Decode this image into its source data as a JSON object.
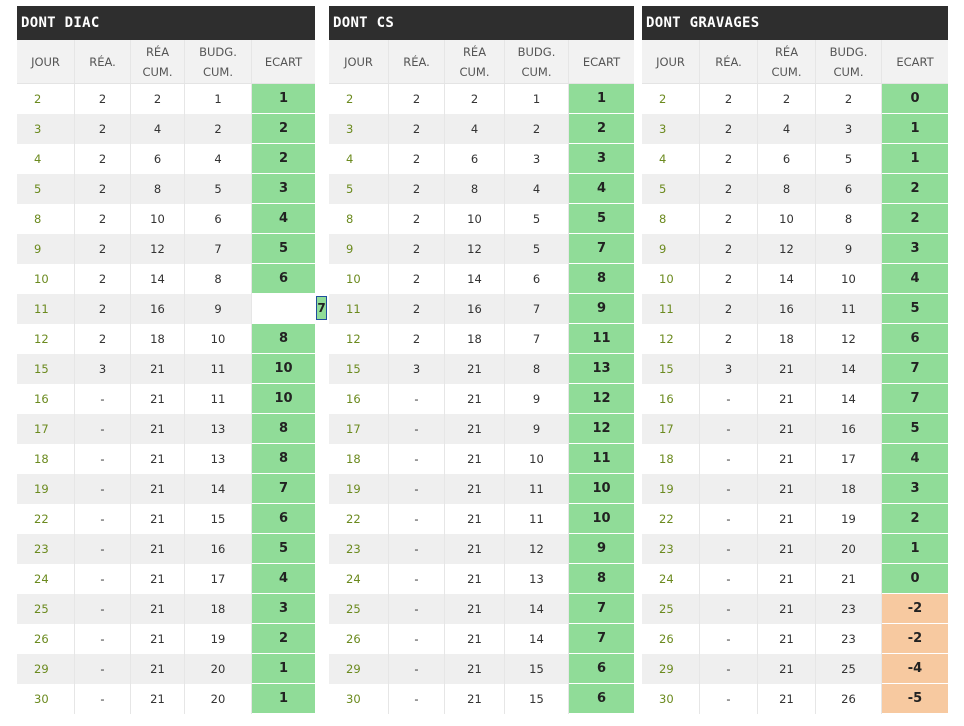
{
  "headers": {
    "jour": "JOUR",
    "rea": "RÉA.",
    "rea_cum_1": "RÉA",
    "rea_cum_2": "CUM.",
    "budg_cum_1": "BUDG.",
    "budg_cum_2": "CUM.",
    "ecart": "ECART"
  },
  "colors": {
    "title_bar": "#2e2e2e",
    "positive": "#90dc98",
    "negative": "#f7c9a0",
    "day_text": "#6b8a1e"
  },
  "panels": [
    {
      "title": "DONT DIAC",
      "rows": [
        {
          "jour": "2",
          "rea": "2",
          "rea_cum": "2",
          "budg_cum": "1",
          "ecart": "1"
        },
        {
          "jour": "3",
          "rea": "2",
          "rea_cum": "4",
          "budg_cum": "2",
          "ecart": "2"
        },
        {
          "jour": "4",
          "rea": "2",
          "rea_cum": "6",
          "budg_cum": "4",
          "ecart": "2"
        },
        {
          "jour": "5",
          "rea": "2",
          "rea_cum": "8",
          "budg_cum": "5",
          "ecart": "3"
        },
        {
          "jour": "8",
          "rea": "2",
          "rea_cum": "10",
          "budg_cum": "6",
          "ecart": "4"
        },
        {
          "jour": "9",
          "rea": "2",
          "rea_cum": "12",
          "budg_cum": "7",
          "ecart": "5"
        },
        {
          "jour": "10",
          "rea": "2",
          "rea_cum": "14",
          "budg_cum": "8",
          "ecart": "6"
        },
        {
          "jour": "11",
          "rea": "2",
          "rea_cum": "16",
          "budg_cum": "9",
          "ecart": "7",
          "selected": true
        },
        {
          "jour": "12",
          "rea": "2",
          "rea_cum": "18",
          "budg_cum": "10",
          "ecart": "8"
        },
        {
          "jour": "15",
          "rea": "3",
          "rea_cum": "21",
          "budg_cum": "11",
          "ecart": "10"
        },
        {
          "jour": "16",
          "rea": "-",
          "rea_cum": "21",
          "budg_cum": "11",
          "ecart": "10"
        },
        {
          "jour": "17",
          "rea": "-",
          "rea_cum": "21",
          "budg_cum": "13",
          "ecart": "8"
        },
        {
          "jour": "18",
          "rea": "-",
          "rea_cum": "21",
          "budg_cum": "13",
          "ecart": "8"
        },
        {
          "jour": "19",
          "rea": "-",
          "rea_cum": "21",
          "budg_cum": "14",
          "ecart": "7"
        },
        {
          "jour": "22",
          "rea": "-",
          "rea_cum": "21",
          "budg_cum": "15",
          "ecart": "6"
        },
        {
          "jour": "23",
          "rea": "-",
          "rea_cum": "21",
          "budg_cum": "16",
          "ecart": "5"
        },
        {
          "jour": "24",
          "rea": "-",
          "rea_cum": "21",
          "budg_cum": "17",
          "ecart": "4"
        },
        {
          "jour": "25",
          "rea": "-",
          "rea_cum": "21",
          "budg_cum": "18",
          "ecart": "3"
        },
        {
          "jour": "26",
          "rea": "-",
          "rea_cum": "21",
          "budg_cum": "19",
          "ecart": "2"
        },
        {
          "jour": "29",
          "rea": "-",
          "rea_cum": "21",
          "budg_cum": "20",
          "ecart": "1"
        },
        {
          "jour": "30",
          "rea": "-",
          "rea_cum": "21",
          "budg_cum": "20",
          "ecart": "1"
        }
      ]
    },
    {
      "title": "DONT CS",
      "rows": [
        {
          "jour": "2",
          "rea": "2",
          "rea_cum": "2",
          "budg_cum": "1",
          "ecart": "1"
        },
        {
          "jour": "3",
          "rea": "2",
          "rea_cum": "4",
          "budg_cum": "2",
          "ecart": "2"
        },
        {
          "jour": "4",
          "rea": "2",
          "rea_cum": "6",
          "budg_cum": "3",
          "ecart": "3"
        },
        {
          "jour": "5",
          "rea": "2",
          "rea_cum": "8",
          "budg_cum": "4",
          "ecart": "4"
        },
        {
          "jour": "8",
          "rea": "2",
          "rea_cum": "10",
          "budg_cum": "5",
          "ecart": "5"
        },
        {
          "jour": "9",
          "rea": "2",
          "rea_cum": "12",
          "budg_cum": "5",
          "ecart": "7"
        },
        {
          "jour": "10",
          "rea": "2",
          "rea_cum": "14",
          "budg_cum": "6",
          "ecart": "8"
        },
        {
          "jour": "11",
          "rea": "2",
          "rea_cum": "16",
          "budg_cum": "7",
          "ecart": "9"
        },
        {
          "jour": "12",
          "rea": "2",
          "rea_cum": "18",
          "budg_cum": "7",
          "ecart": "11"
        },
        {
          "jour": "15",
          "rea": "3",
          "rea_cum": "21",
          "budg_cum": "8",
          "ecart": "13"
        },
        {
          "jour": "16",
          "rea": "-",
          "rea_cum": "21",
          "budg_cum": "9",
          "ecart": "12"
        },
        {
          "jour": "17",
          "rea": "-",
          "rea_cum": "21",
          "budg_cum": "9",
          "ecart": "12"
        },
        {
          "jour": "18",
          "rea": "-",
          "rea_cum": "21",
          "budg_cum": "10",
          "ecart": "11"
        },
        {
          "jour": "19",
          "rea": "-",
          "rea_cum": "21",
          "budg_cum": "11",
          "ecart": "10"
        },
        {
          "jour": "22",
          "rea": "-",
          "rea_cum": "21",
          "budg_cum": "11",
          "ecart": "10"
        },
        {
          "jour": "23",
          "rea": "-",
          "rea_cum": "21",
          "budg_cum": "12",
          "ecart": "9"
        },
        {
          "jour": "24",
          "rea": "-",
          "rea_cum": "21",
          "budg_cum": "13",
          "ecart": "8"
        },
        {
          "jour": "25",
          "rea": "-",
          "rea_cum": "21",
          "budg_cum": "14",
          "ecart": "7"
        },
        {
          "jour": "26",
          "rea": "-",
          "rea_cum": "21",
          "budg_cum": "14",
          "ecart": "7"
        },
        {
          "jour": "29",
          "rea": "-",
          "rea_cum": "21",
          "budg_cum": "15",
          "ecart": "6"
        },
        {
          "jour": "30",
          "rea": "-",
          "rea_cum": "21",
          "budg_cum": "15",
          "ecart": "6"
        }
      ]
    },
    {
      "title": "DONT GRAVAGES",
      "rows": [
        {
          "jour": "2",
          "rea": "2",
          "rea_cum": "2",
          "budg_cum": "2",
          "ecart": "0"
        },
        {
          "jour": "3",
          "rea": "2",
          "rea_cum": "4",
          "budg_cum": "3",
          "ecart": "1"
        },
        {
          "jour": "4",
          "rea": "2",
          "rea_cum": "6",
          "budg_cum": "5",
          "ecart": "1"
        },
        {
          "jour": "5",
          "rea": "2",
          "rea_cum": "8",
          "budg_cum": "6",
          "ecart": "2"
        },
        {
          "jour": "8",
          "rea": "2",
          "rea_cum": "10",
          "budg_cum": "8",
          "ecart": "2"
        },
        {
          "jour": "9",
          "rea": "2",
          "rea_cum": "12",
          "budg_cum": "9",
          "ecart": "3"
        },
        {
          "jour": "10",
          "rea": "2",
          "rea_cum": "14",
          "budg_cum": "10",
          "ecart": "4"
        },
        {
          "jour": "11",
          "rea": "2",
          "rea_cum": "16",
          "budg_cum": "11",
          "ecart": "5"
        },
        {
          "jour": "12",
          "rea": "2",
          "rea_cum": "18",
          "budg_cum": "12",
          "ecart": "6"
        },
        {
          "jour": "15",
          "rea": "3",
          "rea_cum": "21",
          "budg_cum": "14",
          "ecart": "7"
        },
        {
          "jour": "16",
          "rea": "-",
          "rea_cum": "21",
          "budg_cum": "14",
          "ecart": "7"
        },
        {
          "jour": "17",
          "rea": "-",
          "rea_cum": "21",
          "budg_cum": "16",
          "ecart": "5"
        },
        {
          "jour": "18",
          "rea": "-",
          "rea_cum": "21",
          "budg_cum": "17",
          "ecart": "4"
        },
        {
          "jour": "19",
          "rea": "-",
          "rea_cum": "21",
          "budg_cum": "18",
          "ecart": "3"
        },
        {
          "jour": "22",
          "rea": "-",
          "rea_cum": "21",
          "budg_cum": "19",
          "ecart": "2"
        },
        {
          "jour": "23",
          "rea": "-",
          "rea_cum": "21",
          "budg_cum": "20",
          "ecart": "1"
        },
        {
          "jour": "24",
          "rea": "-",
          "rea_cum": "21",
          "budg_cum": "21",
          "ecart": "0"
        },
        {
          "jour": "25",
          "rea": "-",
          "rea_cum": "21",
          "budg_cum": "23",
          "ecart": "-2"
        },
        {
          "jour": "26",
          "rea": "-",
          "rea_cum": "21",
          "budg_cum": "23",
          "ecart": "-2"
        },
        {
          "jour": "29",
          "rea": "-",
          "rea_cum": "21",
          "budg_cum": "25",
          "ecart": "-4"
        },
        {
          "jour": "30",
          "rea": "-",
          "rea_cum": "21",
          "budg_cum": "26",
          "ecart": "-5"
        }
      ]
    }
  ]
}
